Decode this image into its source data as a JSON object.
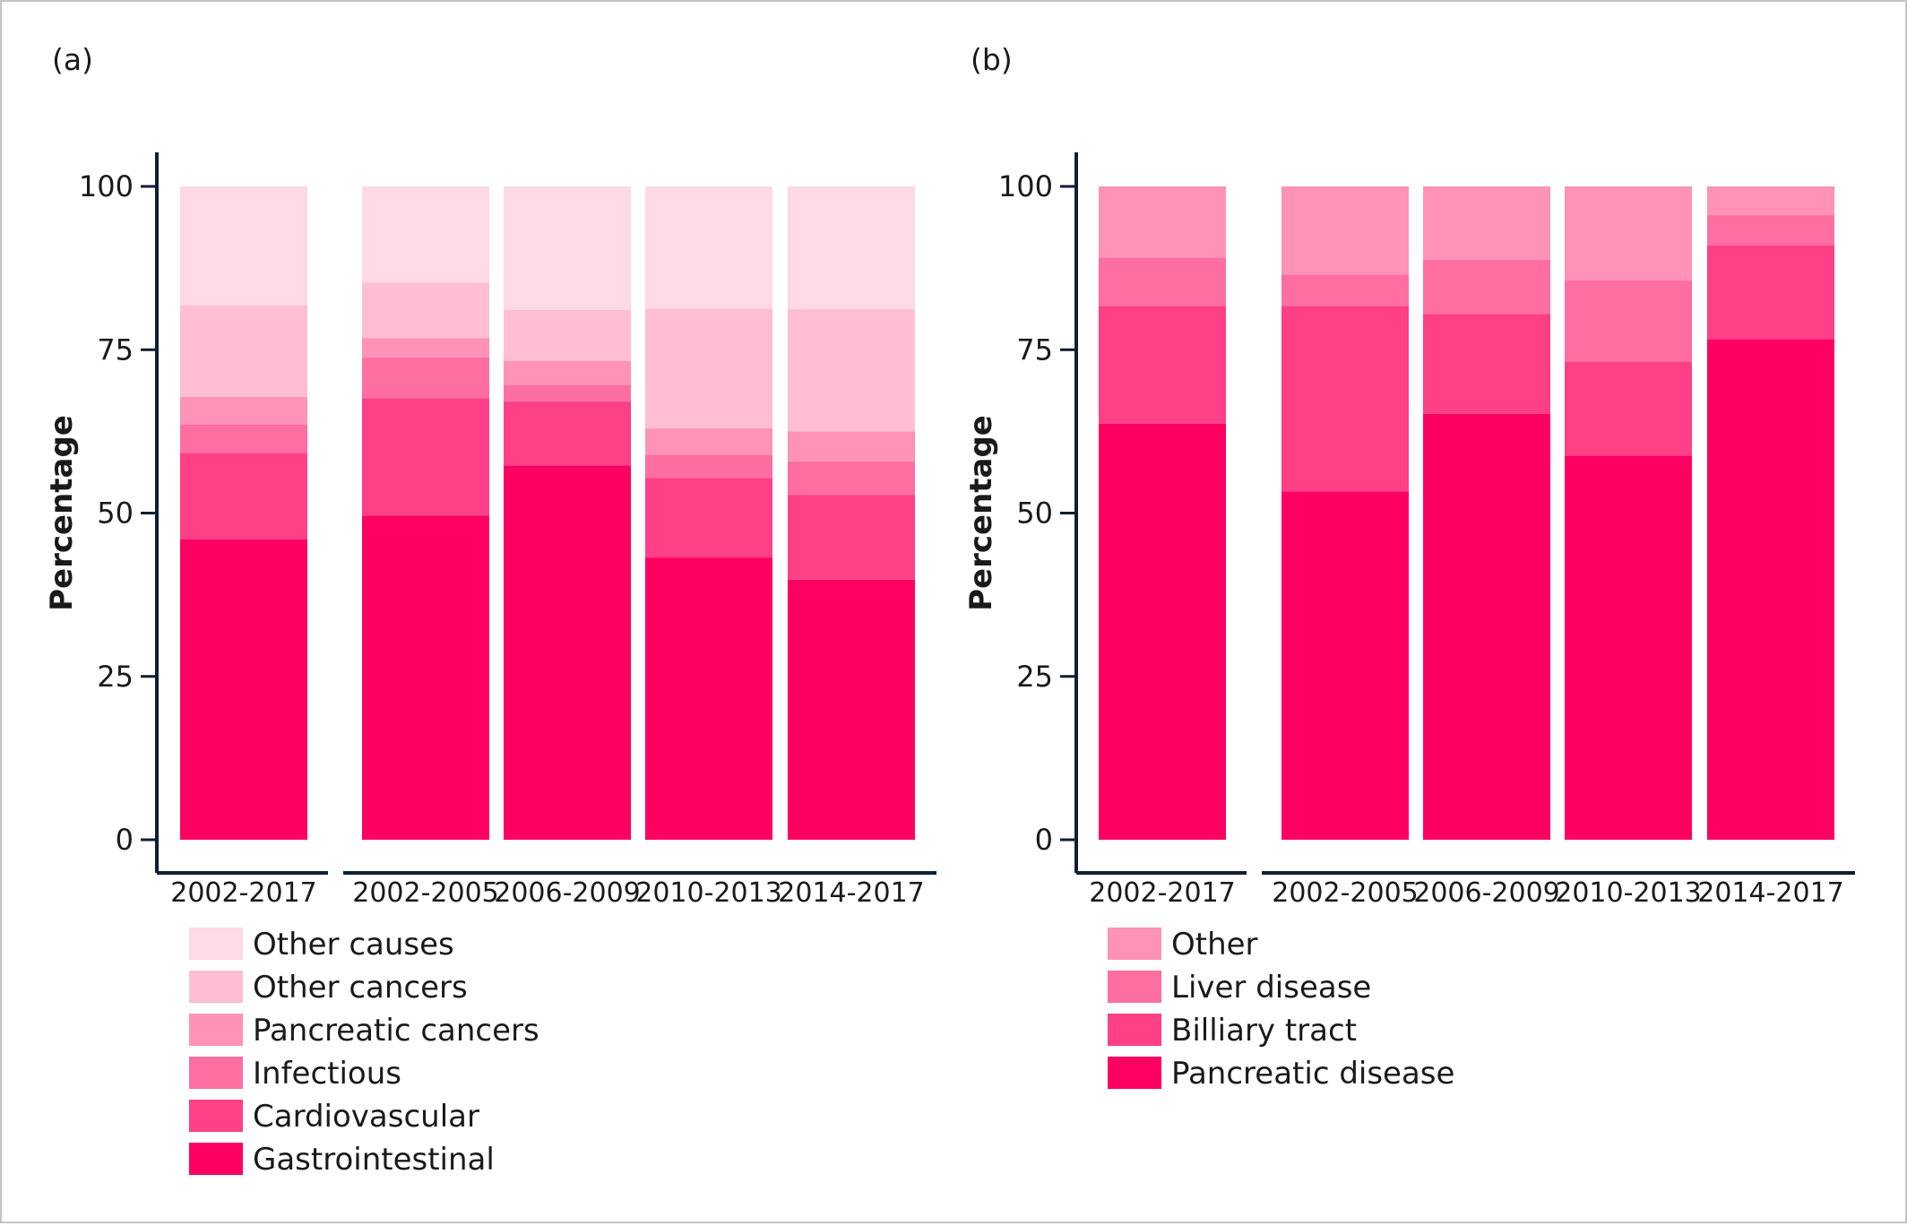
{
  "chart_data": [
    {
      "type": "bar",
      "stacked": true,
      "panel_label": "(a)",
      "ylabel": "Percentage",
      "ylim": [
        0,
        100
      ],
      "yticks": [
        0,
        25,
        50,
        75,
        100
      ],
      "groups": [
        {
          "categories": [
            "2002-2017"
          ]
        },
        {
          "categories": [
            "2002-2005",
            "2006-2009",
            "2010-2013",
            "2014-2017"
          ]
        }
      ],
      "categories": [
        "2002-2017",
        "2002-2005",
        "2006-2009",
        "2010-2013",
        "2014-2017"
      ],
      "series": [
        {
          "name": "Gastrointestinal",
          "color": "#ff0062",
          "values": [
            46,
            49.6,
            57.3,
            43.2,
            39.8
          ]
        },
        {
          "name": "Cardiovascular",
          "color": "#ff3f86",
          "values": [
            13.2,
            18,
            9.8,
            12.2,
            13
          ]
        },
        {
          "name": "Infectious",
          "color": "#ff6ea1",
          "values": [
            4.4,
            6.2,
            2.5,
            3.5,
            5.1
          ]
        },
        {
          "name": "Pancreatic cancers",
          "color": "#ff92b6",
          "values": [
            4.2,
            3,
            3.7,
            4.1,
            4.6
          ]
        },
        {
          "name": "Other cancers",
          "color": "#ffbed3",
          "values": [
            14,
            8.5,
            7.8,
            18.3,
            18.7
          ]
        },
        {
          "name": "Other causes",
          "color": "#ffd9e5",
          "values": [
            18.2,
            14.7,
            18.9,
            18.7,
            18.8
          ]
        }
      ],
      "legend": "bottom"
    },
    {
      "type": "bar",
      "stacked": true,
      "panel_label": "(b)",
      "ylabel": "Percentage",
      "ylim": [
        0,
        100
      ],
      "yticks": [
        0,
        25,
        50,
        75,
        100
      ],
      "groups": [
        {
          "categories": [
            "2002-2017"
          ]
        },
        {
          "categories": [
            "2002-2005",
            "2006-2009",
            "2010-2013",
            "2014-2017"
          ]
        }
      ],
      "categories": [
        "2002-2017",
        "2002-2005",
        "2006-2009",
        "2010-2013",
        "2014-2017"
      ],
      "series": [
        {
          "name": "Pancreatic disease",
          "color": "#ff0062",
          "values": [
            63.7,
            53.3,
            65.2,
            58.8,
            76.6
          ]
        },
        {
          "name": "Billiary tract",
          "color": "#ff3f86",
          "values": [
            18,
            28.4,
            15.3,
            14.4,
            14.4
          ]
        },
        {
          "name": "Liver disease",
          "color": "#ff6ea1",
          "values": [
            7.4,
            4.8,
            8.3,
            12.4,
            4.6
          ]
        },
        {
          "name": "Other",
          "color": "#ff92b6",
          "values": [
            10.9,
            13.5,
            11.2,
            14.4,
            4.4
          ]
        }
      ],
      "legend": "bottom"
    }
  ]
}
